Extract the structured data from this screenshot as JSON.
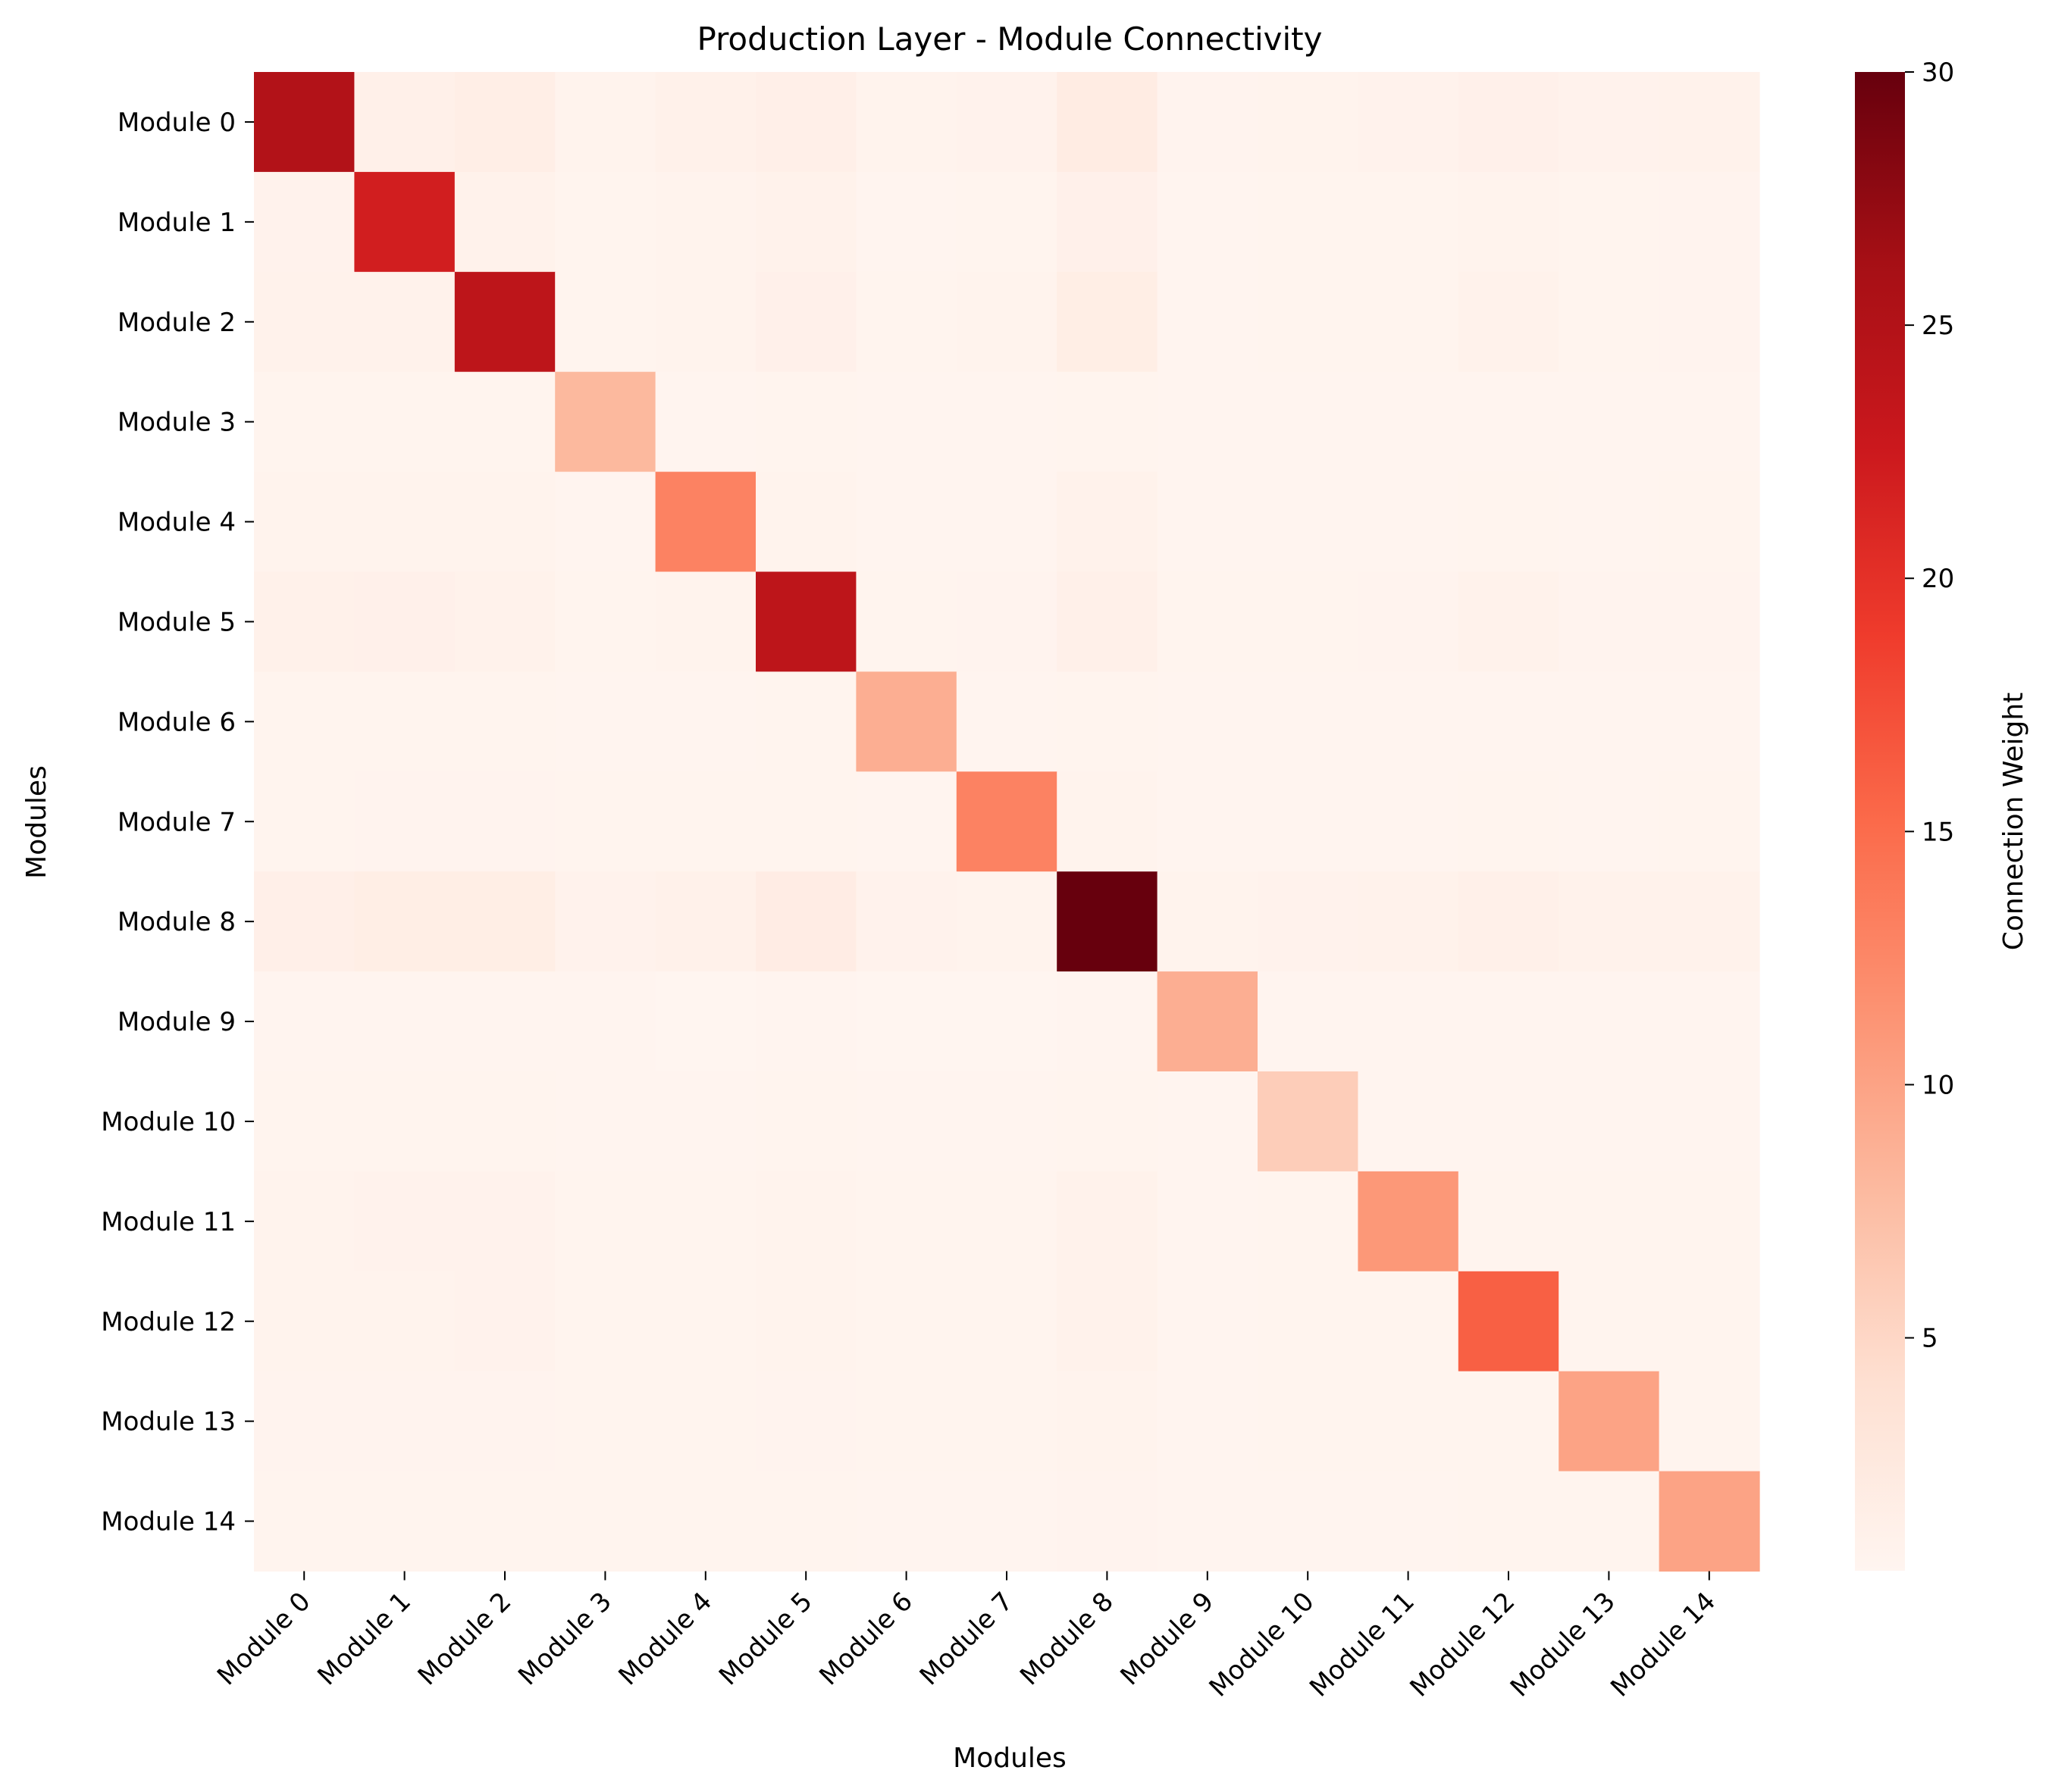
{
  "chart_data": {
    "type": "heatmap",
    "title": "Production Layer - Module Connectivity",
    "xlabel": "Modules",
    "ylabel": "Modules",
    "x_categories": [
      "Module 0",
      "Module 1",
      "Module 2",
      "Module 3",
      "Module 4",
      "Module 5",
      "Module 6",
      "Module 7",
      "Module 8",
      "Module 9",
      "Module 10",
      "Module 11",
      "Module 12",
      "Module 13",
      "Module 14"
    ],
    "y_categories": [
      "Module 0",
      "Module 1",
      "Module 2",
      "Module 3",
      "Module 4",
      "Module 5",
      "Module 6",
      "Module 7",
      "Module 8",
      "Module 9",
      "Module 10",
      "Module 11",
      "Module 12",
      "Module 13",
      "Module 14"
    ],
    "values": [
      [
        25.0,
        1.3,
        1.6,
        0.8,
        1.1,
        1.4,
        0.8,
        0.9,
        2.0,
        0.7,
        0.8,
        0.9,
        1.2,
        0.9,
        1.0
      ],
      [
        0.9,
        22.0,
        1.0,
        0.6,
        0.8,
        1.0,
        0.5,
        0.6,
        1.2,
        0.5,
        0.6,
        0.6,
        0.8,
        0.6,
        0.7
      ],
      [
        1.0,
        1.0,
        24.0,
        0.6,
        0.8,
        1.2,
        0.6,
        0.8,
        1.7,
        0.5,
        0.6,
        0.6,
        1.0,
        0.6,
        0.7
      ],
      [
        0.6,
        0.6,
        0.6,
        8.0,
        0.5,
        0.6,
        0.5,
        0.5,
        0.6,
        0.5,
        0.5,
        0.5,
        0.5,
        0.5,
        0.5
      ],
      [
        0.8,
        0.8,
        0.8,
        0.5,
        13.0,
        0.8,
        0.5,
        0.5,
        1.0,
        0.5,
        0.5,
        0.5,
        0.6,
        0.5,
        0.6
      ],
      [
        1.1,
        1.2,
        1.0,
        0.6,
        0.8,
        24.0,
        0.6,
        0.7,
        1.3,
        0.6,
        0.6,
        0.7,
        1.0,
        0.7,
        0.7
      ],
      [
        0.6,
        0.6,
        0.6,
        0.5,
        0.5,
        0.6,
        9.0,
        0.5,
        0.6,
        0.5,
        0.5,
        0.5,
        0.5,
        0.5,
        0.5
      ],
      [
        0.6,
        0.7,
        0.7,
        0.6,
        0.6,
        0.6,
        0.5,
        13.0,
        0.8,
        0.5,
        0.5,
        0.5,
        0.6,
        0.5,
        0.6
      ],
      [
        1.4,
        1.7,
        1.7,
        0.9,
        1.1,
        1.9,
        0.9,
        0.8,
        30.0,
        0.8,
        0.9,
        1.0,
        1.3,
        1.0,
        1.0
      ],
      [
        0.5,
        0.5,
        0.5,
        0.5,
        0.4,
        0.5,
        0.4,
        0.4,
        0.5,
        9.0,
        0.5,
        0.5,
        0.5,
        0.5,
        0.5
      ],
      [
        0.6,
        0.6,
        0.6,
        0.5,
        0.5,
        0.6,
        0.5,
        0.5,
        0.6,
        0.5,
        6.0,
        0.5,
        0.5,
        0.5,
        0.5
      ],
      [
        0.8,
        0.9,
        0.9,
        0.6,
        0.6,
        0.8,
        0.6,
        0.6,
        1.0,
        0.5,
        0.6,
        11.0,
        0.6,
        0.6,
        0.6
      ],
      [
        0.8,
        0.8,
        0.9,
        0.6,
        0.6,
        0.8,
        0.6,
        0.6,
        1.0,
        0.5,
        0.6,
        0.6,
        16.0,
        0.6,
        0.6
      ],
      [
        0.7,
        0.7,
        0.7,
        0.6,
        0.6,
        0.7,
        0.6,
        0.6,
        0.8,
        0.5,
        0.6,
        0.6,
        0.6,
        10.0,
        0.6
      ],
      [
        0.6,
        0.6,
        0.6,
        0.6,
        0.6,
        0.6,
        0.5,
        0.5,
        0.7,
        0.5,
        0.5,
        0.5,
        0.6,
        0.6,
        10.0
      ]
    ],
    "colormap": "Reds",
    "colorbar": {
      "label": "Connection Weight",
      "range": [
        0.4,
        30
      ],
      "ticks": [
        5,
        10,
        15,
        20,
        25,
        30
      ]
    },
    "grid": false
  }
}
